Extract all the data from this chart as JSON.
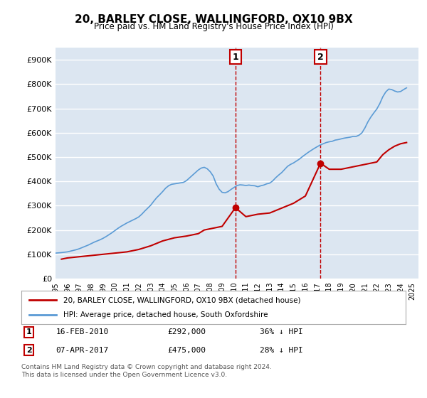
{
  "title": "20, BARLEY CLOSE, WALLINGFORD, OX10 9BX",
  "subtitle": "Price paid vs. HM Land Registry's House Price Index (HPI)",
  "ylabel_ticks": [
    "£0",
    "£100K",
    "£200K",
    "£300K",
    "£400K",
    "£500K",
    "£600K",
    "£700K",
    "£800K",
    "£900K"
  ],
  "ytick_values": [
    0,
    100000,
    200000,
    300000,
    400000,
    500000,
    600000,
    700000,
    800000,
    900000
  ],
  "ylim": [
    0,
    950000
  ],
  "xlim_start": 1995.0,
  "xlim_end": 2025.5,
  "hpi_color": "#5b9bd5",
  "price_color": "#c00000",
  "marker1_date": 2010.12,
  "marker1_price": 292000,
  "marker1_label": "16-FEB-2010",
  "marker1_amount": "£292,000",
  "marker1_pct": "36% ↓ HPI",
  "marker2_date": 2017.27,
  "marker2_price": 475000,
  "marker2_label": "07-APR-2017",
  "marker2_amount": "£475,000",
  "marker2_pct": "28% ↓ HPI",
  "legend_line1": "20, BARLEY CLOSE, WALLINGFORD, OX10 9BX (detached house)",
  "legend_line2": "HPI: Average price, detached house, South Oxfordshire",
  "footnote": "Contains HM Land Registry data © Crown copyright and database right 2024.\nThis data is licensed under the Open Government Licence v3.0.",
  "background_color": "#ffffff",
  "plot_bg_color": "#dce6f1",
  "grid_color": "#ffffff",
  "hpi_years": [
    1995.0,
    1995.25,
    1995.5,
    1995.75,
    1996.0,
    1996.25,
    1996.5,
    1996.75,
    1997.0,
    1997.25,
    1997.5,
    1997.75,
    1998.0,
    1998.25,
    1998.5,
    1998.75,
    1999.0,
    1999.25,
    1999.5,
    1999.75,
    2000.0,
    2000.25,
    2000.5,
    2000.75,
    2001.0,
    2001.25,
    2001.5,
    2001.75,
    2002.0,
    2002.25,
    2002.5,
    2002.75,
    2003.0,
    2003.25,
    2003.5,
    2003.75,
    2004.0,
    2004.25,
    2004.5,
    2004.75,
    2005.0,
    2005.25,
    2005.5,
    2005.75,
    2006.0,
    2006.25,
    2006.5,
    2006.75,
    2007.0,
    2007.25,
    2007.5,
    2007.75,
    2008.0,
    2008.25,
    2008.5,
    2008.75,
    2009.0,
    2009.25,
    2009.5,
    2009.75,
    2010.0,
    2010.25,
    2010.5,
    2010.75,
    2011.0,
    2011.25,
    2011.5,
    2011.75,
    2012.0,
    2012.25,
    2012.5,
    2012.75,
    2013.0,
    2013.25,
    2013.5,
    2013.75,
    2014.0,
    2014.25,
    2014.5,
    2014.75,
    2015.0,
    2015.25,
    2015.5,
    2015.75,
    2016.0,
    2016.25,
    2016.5,
    2016.75,
    2017.0,
    2017.25,
    2017.5,
    2017.75,
    2018.0,
    2018.25,
    2018.5,
    2018.75,
    2019.0,
    2019.25,
    2019.5,
    2019.75,
    2020.0,
    2020.25,
    2020.5,
    2020.75,
    2021.0,
    2021.25,
    2021.5,
    2021.75,
    2022.0,
    2022.25,
    2022.5,
    2022.75,
    2023.0,
    2023.25,
    2023.5,
    2023.75,
    2024.0,
    2024.25,
    2024.5
  ],
  "hpi_values": [
    105000,
    106000,
    107000,
    108500,
    110000,
    113000,
    116000,
    119000,
    123000,
    128000,
    133000,
    138000,
    144000,
    150000,
    155000,
    160000,
    166000,
    173000,
    181000,
    189000,
    198000,
    207000,
    215000,
    222000,
    229000,
    235000,
    241000,
    247000,
    254000,
    265000,
    278000,
    290000,
    302000,
    318000,
    333000,
    345000,
    358000,
    372000,
    382000,
    388000,
    390000,
    392000,
    394000,
    396000,
    403000,
    414000,
    425000,
    436000,
    447000,
    455000,
    458000,
    452000,
    440000,
    422000,
    390000,
    368000,
    355000,
    353000,
    358000,
    367000,
    375000,
    383000,
    386000,
    385000,
    383000,
    385000,
    383000,
    382000,
    378000,
    382000,
    385000,
    390000,
    393000,
    402000,
    415000,
    426000,
    436000,
    449000,
    462000,
    470000,
    476000,
    484000,
    492000,
    502000,
    511000,
    520000,
    528000,
    536000,
    543000,
    550000,
    555000,
    560000,
    563000,
    565000,
    570000,
    572000,
    575000,
    578000,
    580000,
    582000,
    585000,
    585000,
    590000,
    600000,
    620000,
    645000,
    665000,
    682000,
    698000,
    720000,
    748000,
    768000,
    780000,
    778000,
    772000,
    768000,
    770000,
    778000,
    785000
  ],
  "price_years": [
    1995.5,
    1996.0,
    1997.0,
    1998.0,
    1999.0,
    2000.0,
    2001.0,
    2002.0,
    2003.0,
    2004.0,
    2005.0,
    2006.0,
    2007.0,
    2007.5,
    2008.0,
    2009.0,
    2010.12,
    2011.0,
    2012.0,
    2013.0,
    2014.0,
    2015.0,
    2016.0,
    2017.27,
    2018.0,
    2019.0,
    2020.0,
    2021.0,
    2022.0,
    2022.5,
    2023.0,
    2023.5,
    2024.0,
    2024.5
  ],
  "price_values": [
    80000,
    85000,
    90000,
    95000,
    100000,
    105000,
    110000,
    120000,
    135000,
    155000,
    168000,
    175000,
    185000,
    200000,
    205000,
    215000,
    292000,
    255000,
    265000,
    270000,
    290000,
    310000,
    340000,
    475000,
    450000,
    450000,
    460000,
    470000,
    480000,
    510000,
    530000,
    545000,
    555000,
    560000
  ]
}
